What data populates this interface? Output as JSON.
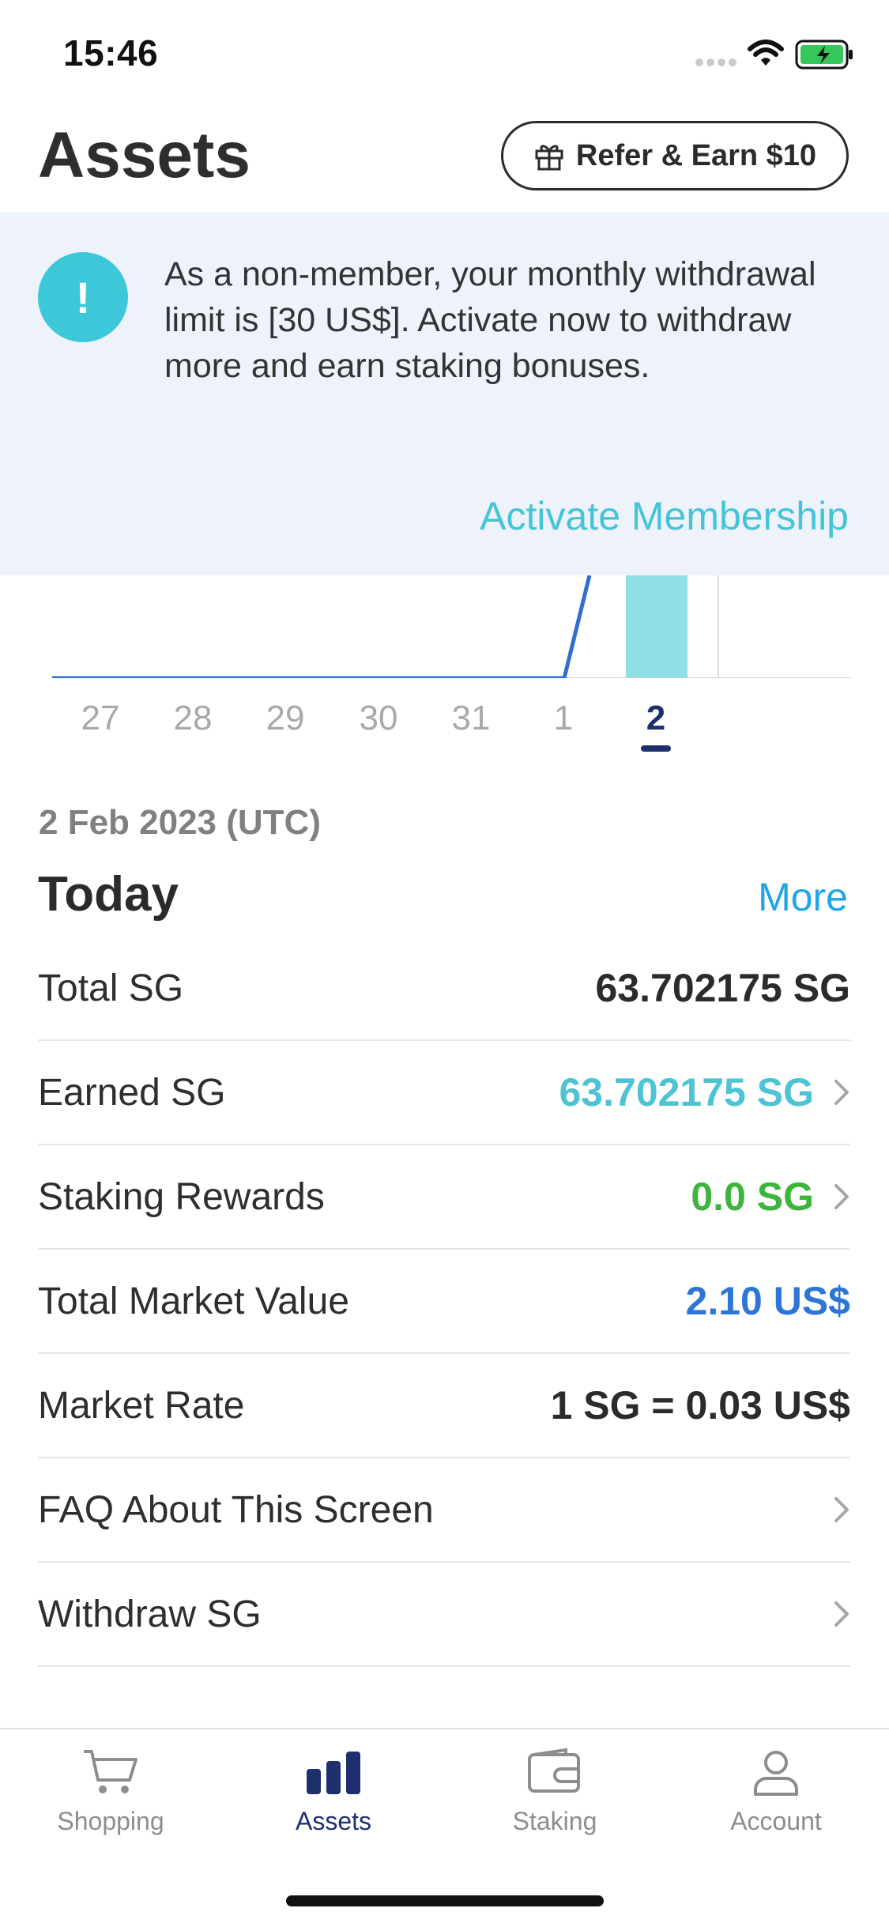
{
  "status_bar": {
    "time": "15:46"
  },
  "header": {
    "title": "Assets",
    "refer_button": "Refer & Earn $10"
  },
  "notice": {
    "icon": "exclamation-icon",
    "message": "As a non-member, your monthly withdrawal limit is [30 US$]. Activate now to withdraw more and earn staking bonuses.",
    "action": "Activate Membership"
  },
  "chart_data": {
    "type": "bar",
    "categories": [
      "27",
      "28",
      "29",
      "30",
      "31",
      "1",
      "2"
    ],
    "selected": "2",
    "colors": {
      "line": "#2f6fd0",
      "bar": "#8fdfe6",
      "selected": "#1e2f6e"
    }
  },
  "summary": {
    "date": "2 Feb 2023 (UTC)",
    "title": "Today",
    "more": "More",
    "rows": [
      {
        "label": "Total SG",
        "value": "63.702175 SG",
        "color": "#2b2b2b",
        "chevron": false
      },
      {
        "label": "Earned SG",
        "value": "63.702175 SG",
        "color": "#4dc3d4",
        "chevron": true
      },
      {
        "label": "Staking Rewards",
        "value": "0.0 SG",
        "color": "#3db43b",
        "chevron": true
      },
      {
        "label": "Total Market Value",
        "value": "2.10 US$",
        "color": "#2e76d6",
        "chevron": false
      },
      {
        "label": "Market Rate",
        "value": "1 SG = 0.03 US$",
        "color": "#2b2b2b",
        "chevron": false
      },
      {
        "label": "FAQ About This Screen",
        "value": "",
        "chevron": true
      },
      {
        "label": "Withdraw SG",
        "value": "",
        "chevron": true
      }
    ]
  },
  "tabs": [
    {
      "label": "Shopping",
      "icon": "cart-icon",
      "active": false
    },
    {
      "label": "Assets",
      "icon": "bar-chart-icon",
      "active": true
    },
    {
      "label": "Staking",
      "icon": "wallet-icon",
      "active": false
    },
    {
      "label": "Account",
      "icon": "person-icon",
      "active": false
    }
  ]
}
